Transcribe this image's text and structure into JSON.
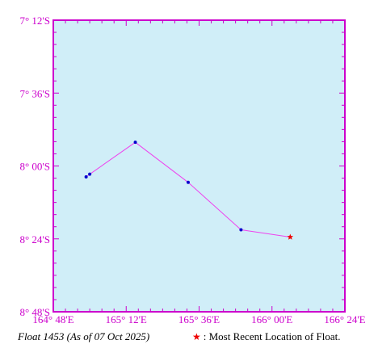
{
  "map": {
    "lon_range": [
      164.8,
      166.4
    ],
    "lat_range": [
      -8.8,
      -7.2
    ],
    "x_ticks": [
      {
        "value": 164.8,
        "label": "164° 48'E"
      },
      {
        "value": 165.2,
        "label": "165° 12'E"
      },
      {
        "value": 165.6,
        "label": "165° 36'E"
      },
      {
        "value": 166.0,
        "label": "166° 00'E"
      },
      {
        "value": 166.4,
        "label": "166° 24'E"
      }
    ],
    "y_ticks": [
      {
        "value": -7.2,
        "label": "7° 12'S"
      },
      {
        "value": -7.6,
        "label": "7° 36'S"
      },
      {
        "value": -8.0,
        "label": "8° 00'S"
      },
      {
        "value": -8.4,
        "label": "8° 24'S"
      },
      {
        "value": -8.8,
        "label": "8° 48'S"
      }
    ],
    "track": [
      {
        "lon": 164.98,
        "lat": -8.06
      },
      {
        "lon": 165.0,
        "lat": -8.045
      },
      {
        "lon": 165.25,
        "lat": -7.87
      },
      {
        "lon": 165.54,
        "lat": -8.09
      },
      {
        "lon": 165.83,
        "lat": -8.35
      },
      {
        "lon": 166.1,
        "lat": -8.39
      }
    ],
    "colors": {
      "ocean": "#d0eef8",
      "frame": "#cc00cc",
      "track_line": "#ee44ee",
      "point": "#0000cc",
      "latest": "#ee0000"
    }
  },
  "caption": {
    "float_label": "Float 1453 (As of 07 Oct 2025)",
    "legend_text": ": Most Recent Location of Float."
  }
}
